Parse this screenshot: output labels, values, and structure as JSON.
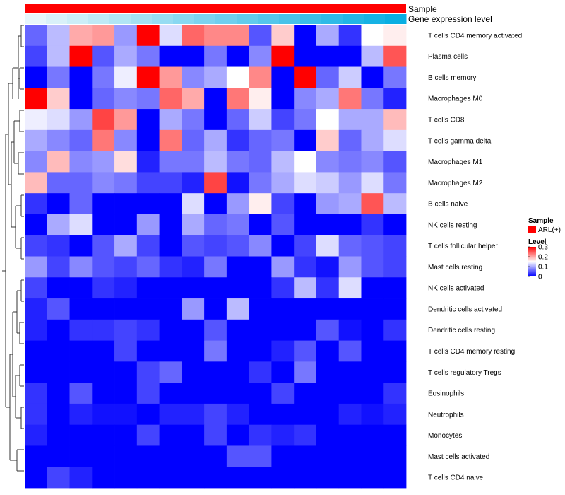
{
  "chart_data": {
    "type": "heatmap",
    "annotations": [
      {
        "name": "Sample",
        "legend_entry": "ARL(+)",
        "color": "#ff0000"
      },
      {
        "name": "Gene expression level",
        "colors": [
          "#e7f6fb",
          "#d9f1f9",
          "#cceef8",
          "#bfe9f6",
          "#b1e5f5",
          "#a4e0f3",
          "#97dcf2",
          "#89d8f1",
          "#7cd3ef",
          "#6fcfee",
          "#62cbec",
          "#55c6eb",
          "#48c2e9",
          "#3bbee8",
          "#2fbae7",
          "#22b6e5",
          "#16b2e4",
          "#0aaee2"
        ]
      }
    ],
    "rows": [
      "T cells CD4 memory activated",
      "Plasma cells",
      "B cells memory",
      "Macrophages M0",
      "T cells CD8",
      "T cells gamma delta",
      "Macrophages M1",
      "Macrophages M2",
      "B cells naive",
      "NK cells resting",
      "T cells follicular helper",
      "Mast cells resting",
      "NK cells activated",
      "Dendritic cells activated",
      "Dendritic cells resting",
      "T cells CD4 memory resting",
      "T cells regulatory  Tregs",
      "Eosinophils",
      "Neutrophils",
      "Monocytes",
      "Mast cells activated",
      "T cells CD4 naive"
    ],
    "values": [
      [
        0.06,
        0.11,
        0.2,
        0.21,
        0.09,
        0.3,
        0.13,
        0.24,
        0.22,
        0.22,
        0.05,
        0.18,
        0.0,
        0.1,
        0.03,
        0.15,
        0.16
      ],
      [
        0.04,
        0.11,
        0.3,
        0.05,
        0.1,
        0.07,
        0.0,
        0.0,
        0.07,
        0.0,
        0.08,
        0.3,
        0.0,
        0.0,
        0.0,
        0.11,
        0.25
      ],
      [
        0.0,
        0.07,
        0.0,
        0.07,
        0.14,
        0.3,
        0.21,
        0.08,
        0.1,
        0.15,
        0.22,
        0.0,
        0.3,
        0.06,
        0.12,
        0.0,
        0.07
      ],
      [
        0.3,
        0.18,
        0.0,
        0.06,
        0.08,
        0.07,
        0.24,
        0.2,
        0.0,
        0.23,
        0.16,
        0.0,
        0.08,
        0.1,
        0.23,
        0.07,
        0.02
      ],
      [
        0.14,
        0.13,
        0.09,
        0.26,
        0.21,
        0.0,
        0.1,
        0.07,
        0.0,
        0.06,
        0.12,
        0.04,
        0.07,
        0.15,
        0.1,
        0.1,
        0.19
      ],
      [
        0.1,
        0.08,
        0.06,
        0.23,
        0.08,
        0.0,
        0.23,
        0.06,
        0.1,
        0.03,
        0.06,
        0.07,
        0.0,
        0.18,
        0.06,
        0.1,
        0.13
      ],
      [
        0.08,
        0.19,
        0.08,
        0.09,
        0.17,
        0.02,
        0.07,
        0.07,
        0.11,
        0.07,
        0.06,
        0.11,
        0.15,
        0.08,
        0.07,
        0.08,
        0.05
      ],
      [
        0.19,
        0.06,
        0.06,
        0.08,
        0.07,
        0.04,
        0.04,
        0.02,
        0.26,
        0.01,
        0.07,
        0.1,
        0.13,
        0.12,
        0.09,
        0.13,
        0.07
      ],
      [
        0.03,
        0.0,
        0.06,
        0.0,
        0.0,
        0.0,
        0.0,
        0.13,
        0.0,
        0.09,
        0.16,
        0.04,
        0.0,
        0.09,
        0.1,
        0.25,
        0.11
      ],
      [
        0.0,
        0.1,
        0.13,
        0.0,
        0.0,
        0.09,
        0.0,
        0.1,
        0.06,
        0.07,
        0.0,
        0.05,
        0.0,
        0.0,
        0.0,
        0.03,
        0.0
      ],
      [
        0.04,
        0.03,
        0.0,
        0.05,
        0.1,
        0.04,
        0.0,
        0.05,
        0.04,
        0.05,
        0.08,
        0.0,
        0.04,
        0.13,
        0.06,
        0.05,
        0.04
      ],
      [
        0.09,
        0.04,
        0.08,
        0.05,
        0.04,
        0.06,
        0.03,
        0.02,
        0.07,
        0.0,
        0.0,
        0.09,
        0.03,
        0.01,
        0.09,
        0.05,
        0.04
      ],
      [
        0.04,
        0.0,
        0.0,
        0.03,
        0.02,
        0.0,
        0.0,
        0.0,
        0.0,
        0.0,
        0.0,
        0.03,
        0.11,
        0.03,
        0.13,
        0.0,
        0.0
      ],
      [
        0.02,
        0.05,
        0.0,
        0.0,
        0.0,
        0.0,
        0.0,
        0.09,
        0.0,
        0.11,
        0.0,
        0.0,
        0.0,
        0.0,
        0.0,
        0.0,
        0.0
      ],
      [
        0.02,
        0.0,
        0.03,
        0.03,
        0.04,
        0.03,
        0.0,
        0.0,
        0.05,
        0.0,
        0.0,
        0.0,
        0.0,
        0.05,
        0.01,
        0.0,
        0.03
      ],
      [
        0.0,
        0.0,
        0.0,
        0.0,
        0.04,
        0.0,
        0.0,
        0.0,
        0.07,
        0.0,
        0.0,
        0.02,
        0.05,
        0.0,
        0.05,
        0.0,
        0.0
      ],
      [
        0.0,
        0.0,
        0.0,
        0.0,
        0.0,
        0.04,
        0.06,
        0.0,
        0.0,
        0.0,
        0.03,
        0.0,
        0.07,
        0.0,
        0.0,
        0.0,
        0.0
      ],
      [
        0.03,
        0.0,
        0.05,
        0.0,
        0.0,
        0.04,
        0.0,
        0.0,
        0.0,
        0.0,
        0.0,
        0.04,
        0.0,
        0.0,
        0.0,
        0.0,
        0.03
      ],
      [
        0.03,
        0.0,
        0.02,
        0.01,
        0.01,
        0.0,
        0.02,
        0.02,
        0.04,
        0.02,
        0.0,
        0.0,
        0.0,
        0.0,
        0.02,
        0.01,
        0.02
      ],
      [
        0.02,
        0.0,
        0.0,
        0.0,
        0.0,
        0.04,
        0.0,
        0.0,
        0.04,
        0.0,
        0.03,
        0.02,
        0.03,
        0.0,
        0.0,
        0.0,
        0.0
      ],
      [
        0.0,
        0.0,
        0.0,
        0.0,
        0.0,
        0.0,
        0.0,
        0.0,
        0.0,
        0.05,
        0.05,
        0.0,
        0.0,
        0.0,
        0.0,
        0.0,
        0.0
      ],
      [
        0.0,
        0.04,
        0.02,
        0.0,
        0.0,
        0.0,
        0.0,
        0.0,
        0.0,
        0.0,
        0.0,
        0.0,
        0.0,
        0.0,
        0.0,
        0.0,
        0.0
      ]
    ],
    "color_scale": {
      "min": 0,
      "mid": 0.15,
      "max": 0.3,
      "low_color": "#0000ff",
      "mid_color": "#ffffff",
      "high_color": "#ff0000"
    },
    "legend": {
      "sample_title": "Sample",
      "level_title": "Level",
      "ticks": [
        "0.3",
        "0.2",
        "0.1",
        "0"
      ],
      "placement": "right"
    },
    "dendrogram": "left"
  }
}
